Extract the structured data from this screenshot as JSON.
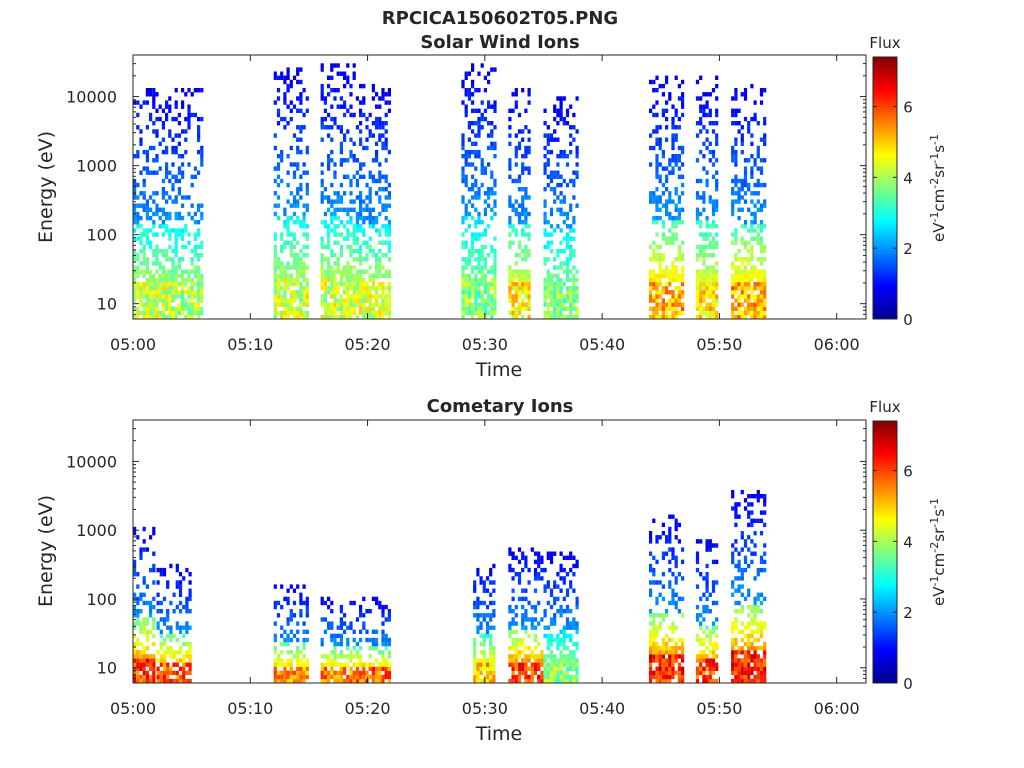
{
  "figure_title": "RPCICA150602T05.PNG",
  "colorbar": {
    "title": "Flux",
    "label_prefix": "eV",
    "label_text": "eV-1cm-2sr-1s-1",
    "range": [
      0,
      7.4
    ],
    "ticks": [
      "0",
      "2",
      "4",
      "6"
    ],
    "colormap": "jet"
  },
  "chart_data": [
    {
      "type": "heatmap",
      "title": "Solar Wind Ions",
      "xlabel": "Time",
      "ylabel": "Energy (eV)",
      "yscale": "log",
      "ylim": [
        6,
        40000
      ],
      "xlim_minutes": [
        0,
        62.5
      ],
      "x_ticks": [
        "05:00",
        "05:10",
        "05:20",
        "05:30",
        "05:40",
        "05:50",
        "06:00"
      ],
      "y_ticks": [
        "10",
        "100",
        "1000",
        "10000"
      ],
      "clim": [
        0,
        7.4
      ],
      "bursts": [
        {
          "start": "05:00",
          "end": "05:02",
          "min_energy": 6,
          "max_energy": 13000,
          "peak_flux": 5.0
        },
        {
          "start": "05:03",
          "end": "05:05",
          "min_energy": 6,
          "max_energy": 13000,
          "peak_flux": 4.8
        },
        {
          "start": "05:12",
          "end": "05:14",
          "min_energy": 6,
          "max_energy": 25000,
          "peak_flux": 5.0
        },
        {
          "start": "05:16",
          "end": "05:18",
          "min_energy": 6,
          "max_energy": 28000,
          "peak_flux": 5.0
        },
        {
          "start": "05:19",
          "end": "05:21",
          "min_energy": 6,
          "max_energy": 14000,
          "peak_flux": 5.0
        },
        {
          "start": "05:28",
          "end": "05:30",
          "min_energy": 6,
          "max_energy": 27000,
          "peak_flux": 4.5
        },
        {
          "start": "05:32",
          "end": "05:33",
          "min_energy": 6,
          "max_energy": 13000,
          "peak_flux": 5.5
        },
        {
          "start": "05:35",
          "end": "05:37",
          "min_energy": 6,
          "max_energy": 9000,
          "peak_flux": 4.5
        },
        {
          "start": "05:44",
          "end": "05:46",
          "min_energy": 6,
          "max_energy": 20000,
          "peak_flux": 6.0
        },
        {
          "start": "05:48",
          "end": "05:49",
          "min_energy": 6,
          "max_energy": 20000,
          "peak_flux": 5.5
        },
        {
          "start": "05:51",
          "end": "05:53",
          "min_energy": 6,
          "max_energy": 14000,
          "peak_flux": 6.0
        }
      ]
    },
    {
      "type": "heatmap",
      "title": "Cometary Ions",
      "xlabel": "Time",
      "ylabel": "Energy (eV)",
      "yscale": "log",
      "ylim": [
        6,
        40000
      ],
      "xlim_minutes": [
        0,
        62.5
      ],
      "x_ticks": [
        "05:00",
        "05:10",
        "05:20",
        "05:30",
        "05:40",
        "05:50",
        "06:00"
      ],
      "y_ticks": [
        "10",
        "100",
        "1000",
        "10000"
      ],
      "clim": [
        0,
        7.4
      ],
      "bursts": [
        {
          "start": "05:00",
          "end": "05:01",
          "min_energy": 6,
          "max_energy": 1100,
          "peak_flux": 6.8
        },
        {
          "start": "05:02",
          "end": "05:04",
          "min_energy": 6,
          "max_energy": 300,
          "peak_flux": 6.5
        },
        {
          "start": "05:12",
          "end": "05:14",
          "min_energy": 6,
          "max_energy": 150,
          "peak_flux": 6.2
        },
        {
          "start": "05:16",
          "end": "05:18",
          "min_energy": 6,
          "max_energy": 100,
          "peak_flux": 6.3
        },
        {
          "start": "05:19",
          "end": "05:21",
          "min_energy": 6,
          "max_energy": 100,
          "peak_flux": 6.5
        },
        {
          "start": "05:29",
          "end": "05:30",
          "min_energy": 6,
          "max_energy": 300,
          "peak_flux": 5.8
        },
        {
          "start": "05:32",
          "end": "05:34",
          "min_energy": 6,
          "max_energy": 500,
          "peak_flux": 6.8
        },
        {
          "start": "05:35",
          "end": "05:37",
          "min_energy": 6,
          "max_energy": 450,
          "peak_flux": 4.5
        },
        {
          "start": "05:44",
          "end": "05:46",
          "min_energy": 6,
          "max_energy": 1600,
          "peak_flux": 7.0
        },
        {
          "start": "05:48",
          "end": "05:49",
          "min_energy": 6,
          "max_energy": 650,
          "peak_flux": 6.8
        },
        {
          "start": "05:51",
          "end": "05:53",
          "min_energy": 6,
          "max_energy": 3800,
          "peak_flux": 7.0
        }
      ]
    }
  ]
}
